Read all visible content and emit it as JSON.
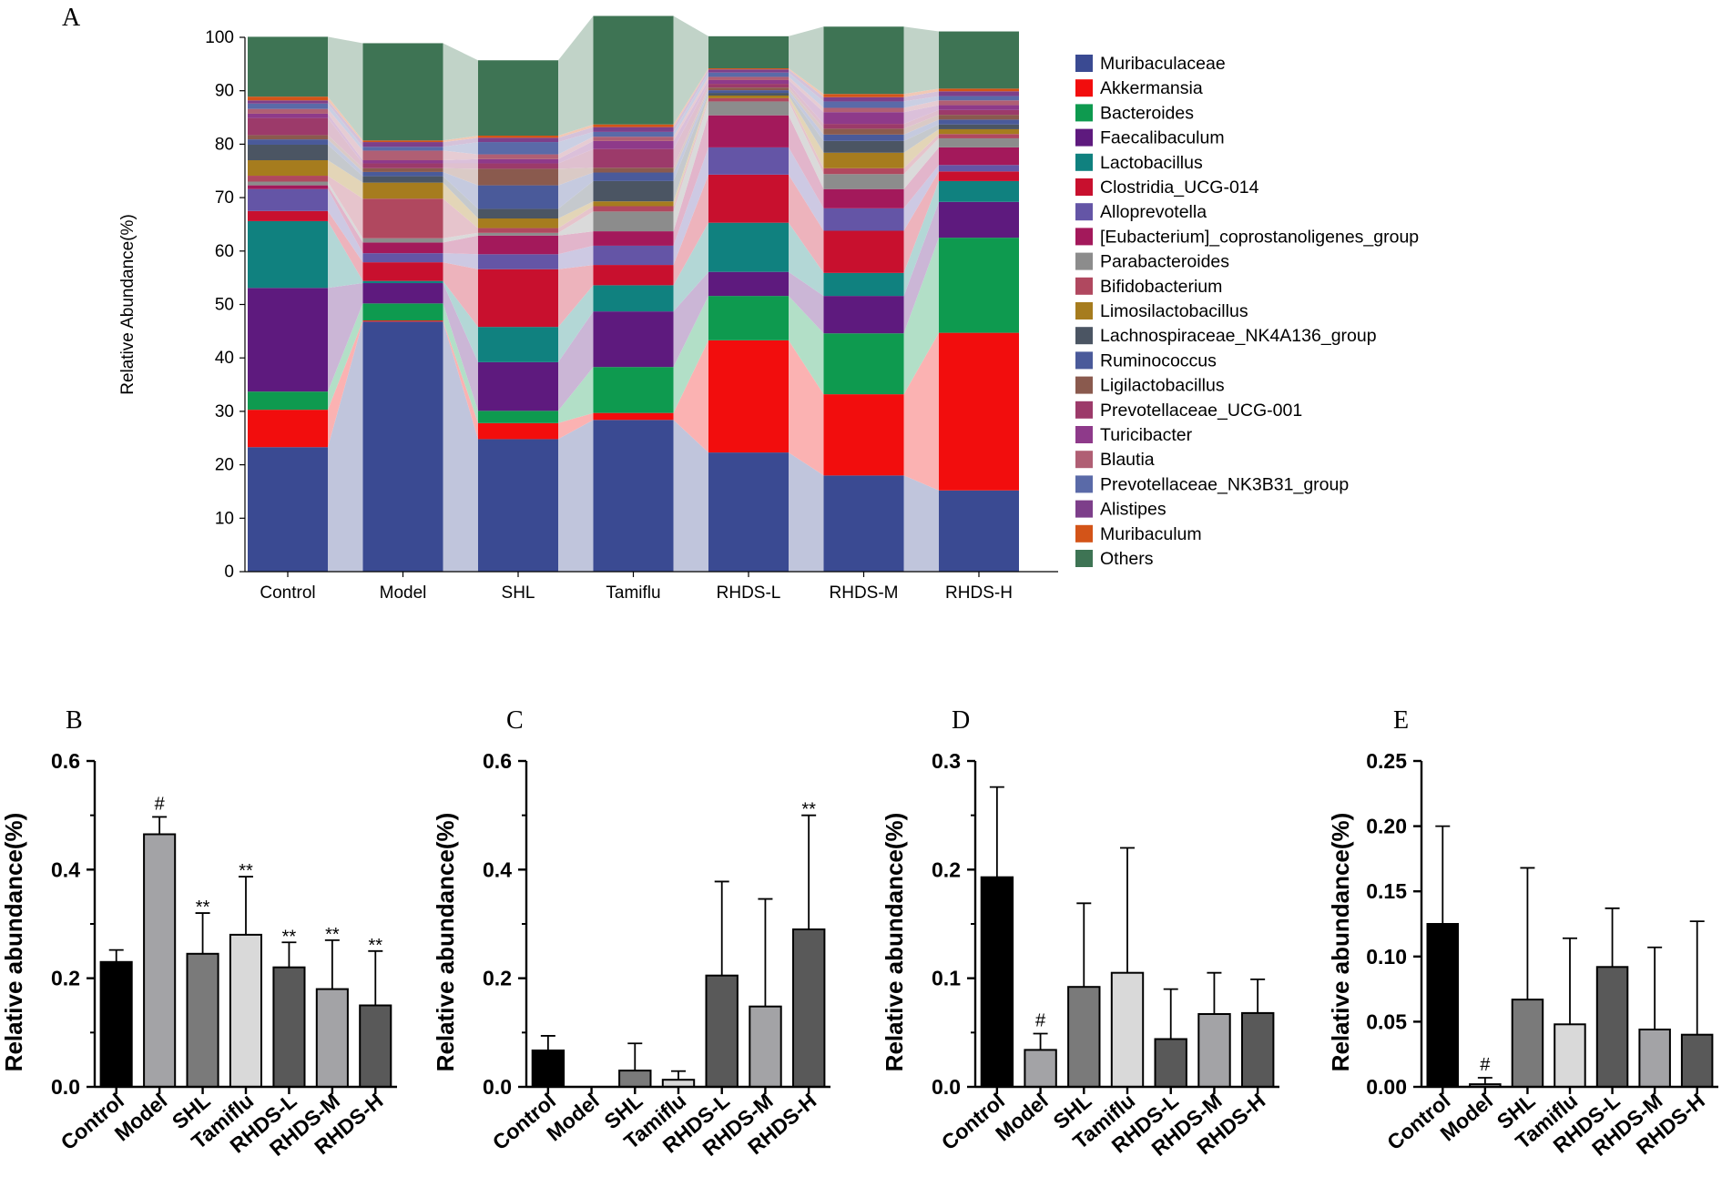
{
  "chart_data": [
    {
      "panel": "A",
      "type": "bar",
      "stacked": true,
      "ylabel": "Relative Abundance(%)",
      "ylim": [
        0,
        100
      ],
      "yticks": [
        "0",
        "10",
        "20",
        "30",
        "40",
        "50",
        "60",
        "70",
        "80",
        "90",
        "100"
      ],
      "categories": [
        "Control",
        "Model",
        "SHL",
        "Tamiflu",
        "RHDS-L",
        "RHDS-M",
        "RHDS-H"
      ],
      "series": [
        {
          "name": "Muribaculaceae",
          "color": "#3a4a92",
          "values": [
            23.3,
            46.8,
            24.8,
            28.4,
            22.3,
            18.0,
            15.2
          ]
        },
        {
          "name": "Akkermansia",
          "color": "#f20d0d",
          "values": [
            7.0,
            0.2,
            3.0,
            1.3,
            21.0,
            15.2,
            29.5
          ]
        },
        {
          "name": "Bacteroides",
          "color": "#0e9a4f",
          "values": [
            3.4,
            3.2,
            2.3,
            8.6,
            8.3,
            11.4,
            17.8
          ]
        },
        {
          "name": "Faecalibaculum",
          "color": "#5e1a7e",
          "values": [
            19.4,
            3.8,
            9.1,
            10.4,
            4.5,
            7.0,
            6.7
          ]
        },
        {
          "name": "Lactobacillus",
          "color": "#10817f",
          "values": [
            12.5,
            0.4,
            6.6,
            4.9,
            9.2,
            4.3,
            3.9
          ]
        },
        {
          "name": "Clostridia_UCG-014",
          "color": "#c8102e",
          "values": [
            1.9,
            3.5,
            10.8,
            3.8,
            9.0,
            7.9,
            1.8
          ]
        },
        {
          "name": "Alloprevotella",
          "color": "#6455a6",
          "values": [
            4.1,
            1.7,
            2.8,
            3.6,
            5.1,
            4.2,
            1.2
          ]
        },
        {
          "name": "[Eubacterium]_coprostanoligenes_group",
          "color": "#a3195b",
          "values": [
            0.7,
            2.0,
            3.5,
            2.7,
            6.0,
            3.6,
            3.3
          ]
        },
        {
          "name": "Parabacteroides",
          "color": "#8c8c8c",
          "values": [
            0.7,
            0.8,
            0.5,
            3.7,
            2.6,
            2.8,
            1.7
          ]
        },
        {
          "name": "Bifidobacterium",
          "color": "#b0485f",
          "values": [
            1.1,
            7.4,
            0.9,
            1.0,
            0.6,
            1.1,
            0.8
          ]
        },
        {
          "name": "Limosilactobacillus",
          "color": "#a67c1e",
          "values": [
            2.9,
            3.0,
            1.8,
            0.9,
            0.5,
            2.9,
            0.9
          ]
        },
        {
          "name": "Lachnospiraceae_NK4A136_group",
          "color": "#4b5563",
          "values": [
            2.9,
            1.2,
            1.8,
            3.8,
            0.5,
            2.2,
            0.9
          ]
        },
        {
          "name": "Ruminococcus",
          "color": "#4a5a9a",
          "values": [
            1.0,
            0.8,
            4.4,
            1.6,
            0.5,
            1.2,
            0.9
          ]
        },
        {
          "name": "Ligilactobacillus",
          "color": "#8a5a4e",
          "values": [
            0.8,
            0.7,
            3.1,
            0.9,
            0.5,
            1.1,
            0.9
          ]
        },
        {
          "name": "Prevotellaceae_UCG-001",
          "color": "#9c3a6a",
          "values": [
            3.2,
            0.9,
            1.0,
            3.5,
            0.7,
            0.9,
            0.9
          ]
        },
        {
          "name": "Turicibacter",
          "color": "#8e3a8a",
          "values": [
            0.8,
            0.6,
            0.8,
            1.5,
            0.7,
            2.2,
            0.9
          ]
        },
        {
          "name": "Blautia",
          "color": "#b05f74",
          "values": [
            0.9,
            1.8,
            0.9,
            0.8,
            0.6,
            0.8,
            0.9
          ]
        },
        {
          "name": "Prevotellaceae_NK3B31_group",
          "color": "#5a6aa8",
          "values": [
            1.0,
            0.7,
            2.3,
            0.9,
            0.8,
            1.2,
            0.8
          ]
        },
        {
          "name": "Alistipes",
          "color": "#7d3f8a",
          "values": [
            0.6,
            0.9,
            0.8,
            0.9,
            0.6,
            0.8,
            0.9
          ]
        },
        {
          "name": "Muribaculum",
          "color": "#d35418",
          "values": [
            0.7,
            0.3,
            0.4,
            0.5,
            0.2,
            0.6,
            0.5
          ]
        },
        {
          "name": "Others",
          "color": "#3e7454",
          "values": [
            11.2,
            18.2,
            14.1,
            20.3,
            6.0,
            12.6,
            10.7
          ]
        }
      ]
    },
    {
      "panel": "B",
      "type": "bar",
      "ylabel": "Relative abundance(%)",
      "ylim": [
        0,
        0.6
      ],
      "yticks": [
        "0.0",
        "0.2",
        "0.4",
        "0.6"
      ],
      "categories": [
        "Control",
        "Model",
        "SHL",
        "Tamiflu",
        "RHDS-L",
        "RHDS-M",
        "RHDS-H"
      ],
      "values": [
        0.23,
        0.465,
        0.245,
        0.28,
        0.22,
        0.18,
        0.15
      ],
      "errors": [
        0.022,
        0.032,
        0.075,
        0.107,
        0.046,
        0.09,
        0.1
      ],
      "annotations": [
        "",
        "#",
        "**",
        "**",
        "**",
        "**",
        "**"
      ]
    },
    {
      "panel": "C",
      "type": "bar",
      "ylabel": "Relative abundance(%)",
      "ylim": [
        0,
        0.6
      ],
      "yticks": [
        "0.0",
        "0.2",
        "0.4",
        "0.6"
      ],
      "categories": [
        "Control",
        "Model",
        "SHL",
        "Tamiflu",
        "RHDS-L",
        "RHDS-M",
        "RHDS-H"
      ],
      "values": [
        0.067,
        0.0,
        0.03,
        0.013,
        0.205,
        0.148,
        0.29
      ],
      "errors": [
        0.027,
        0.0,
        0.05,
        0.016,
        0.173,
        0.198,
        0.21
      ],
      "annotations": [
        "",
        "",
        "",
        "",
        "",
        "",
        "**"
      ]
    },
    {
      "panel": "D",
      "type": "bar",
      "ylabel": "Relative abundance(%)",
      "ylim": [
        0,
        0.3
      ],
      "yticks": [
        "0.0",
        "0.1",
        "0.2",
        "0.3"
      ],
      "categories": [
        "Control",
        "Model",
        "SHL",
        "Tamiflu",
        "RHDS-L",
        "RHDS-M",
        "RHDS-H"
      ],
      "values": [
        0.193,
        0.034,
        0.092,
        0.105,
        0.044,
        0.067,
        0.068
      ],
      "errors": [
        0.083,
        0.015,
        0.077,
        0.115,
        0.046,
        0.038,
        0.031
      ],
      "annotations": [
        "",
        "#",
        "",
        "",
        "",
        "",
        ""
      ]
    },
    {
      "panel": "E",
      "type": "bar",
      "ylabel": "Relative abundance(%)",
      "ylim": [
        0,
        0.25
      ],
      "yticks": [
        "0.00",
        "0.05",
        "0.10",
        "0.15",
        "0.20",
        "0.25"
      ],
      "categories": [
        "Control",
        "Model",
        "SHL",
        "Tamiflu",
        "RHDS-L",
        "RHDS-M",
        "RHDS-H"
      ],
      "values": [
        0.125,
        0.002,
        0.067,
        0.048,
        0.092,
        0.044,
        0.04
      ],
      "errors": [
        0.075,
        0.005,
        0.101,
        0.066,
        0.045,
        0.063,
        0.087
      ],
      "annotations": [
        "",
        "#",
        "",
        "",
        "",
        "",
        ""
      ]
    }
  ]
}
